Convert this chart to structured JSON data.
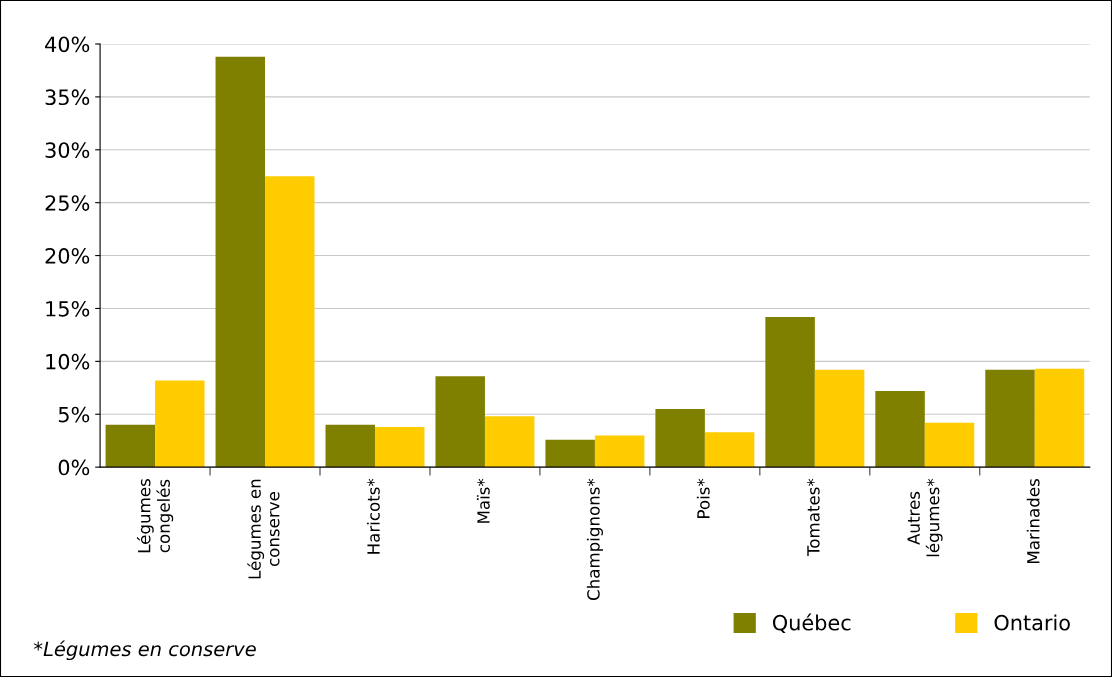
{
  "chart_data": {
    "type": "bar",
    "categories": [
      "Légumes\ncongelés",
      "Légumes en\nconserve",
      "Haricots*",
      "Maïs*",
      "Champignons*",
      "Pois*",
      "Tomates*",
      "Autres\nlégumes*",
      "Marinades"
    ],
    "series": [
      {
        "name": "Québec",
        "color": "#808000",
        "values": [
          4.0,
          38.8,
          4.0,
          8.6,
          2.6,
          5.5,
          14.2,
          7.2,
          9.2
        ]
      },
      {
        "name": "Ontario",
        "color": "#ffcc00",
        "values": [
          8.2,
          27.5,
          3.8,
          4.8,
          3.0,
          3.3,
          9.2,
          4.2,
          9.3
        ]
      }
    ],
    "ylim": [
      0,
      40
    ],
    "yticks": [
      {
        "value": 0,
        "label": "0%"
      },
      {
        "value": 5,
        "label": "5%"
      },
      {
        "value": 10,
        "label": "10%"
      },
      {
        "value": 15,
        "label": "15%"
      },
      {
        "value": 20,
        "label": "20%"
      },
      {
        "value": 25,
        "label": "25%"
      },
      {
        "value": 30,
        "label": "30%"
      },
      {
        "value": 35,
        "label": "35%"
      },
      {
        "value": 40,
        "label": "40%"
      }
    ],
    "grid": "y",
    "legend": "bottom right",
    "annotations": [
      "*Légumes en conserve"
    ]
  }
}
